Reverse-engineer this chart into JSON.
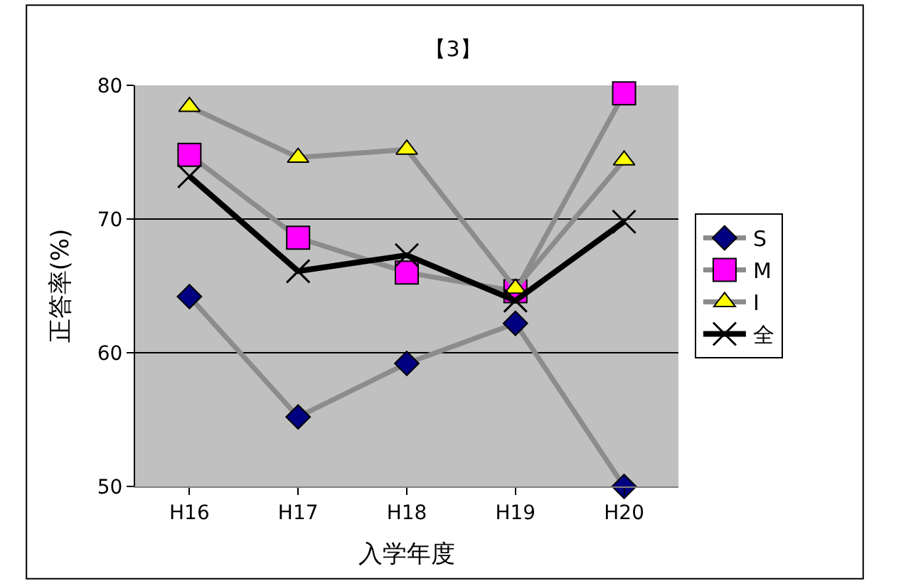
{
  "chart_data": {
    "type": "line",
    "title": "【3】",
    "xlabel": "入学年度",
    "ylabel": "正答率(%)",
    "categories": [
      "H16",
      "H17",
      "H18",
      "H19",
      "H20"
    ],
    "series": [
      {
        "name": "S",
        "color": "#000080",
        "marker": "diamond",
        "values": [
          64.2,
          55.2,
          59.2,
          62.2,
          50.0
        ]
      },
      {
        "name": "M",
        "color": "#ff00ff",
        "marker": "square",
        "values": [
          74.8,
          68.6,
          66.0,
          64.6,
          79.4
        ]
      },
      {
        "name": "I",
        "color": "#ffff00",
        "marker": "triangle",
        "values": [
          78.4,
          74.6,
          75.2,
          64.8,
          74.4
        ]
      },
      {
        "name": "全",
        "color": "#000000",
        "marker": "cross",
        "values": [
          73.2,
          66.1,
          67.3,
          63.9,
          69.8
        ]
      }
    ],
    "ylim": [
      50,
      80
    ],
    "yticks": [
      50,
      60,
      70,
      80
    ],
    "grid": "y",
    "legend": "right"
  }
}
